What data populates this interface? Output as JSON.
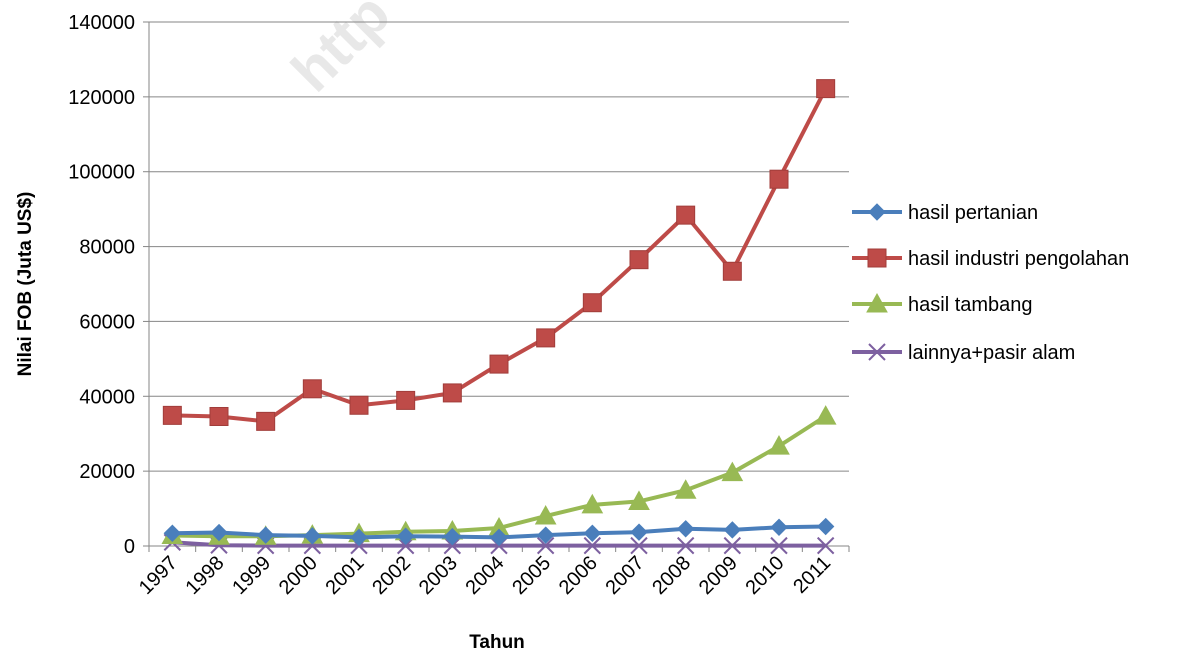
{
  "chart_data": {
    "type": "line",
    "title": "",
    "xlabel": "Tahun",
    "ylabel": "Nilai FOB (Juta US$)",
    "ylim": [
      0,
      140000
    ],
    "yticks": [
      "0",
      "20000",
      "40000",
      "60000",
      "80000",
      "100000",
      "120000",
      "140000"
    ],
    "grid": true,
    "legend_position": "right",
    "watermark": "http",
    "categories": [
      "1997",
      "1998",
      "1999",
      "2000",
      "2001",
      "2002",
      "2003",
      "2004",
      "2005",
      "2006",
      "2007",
      "2008",
      "2009",
      "2010",
      "2011"
    ],
    "series": [
      {
        "name": "hasil pertanian",
        "color": "#4a7ebb",
        "marker": "diamond",
        "values": [
          3400,
          3600,
          2900,
          2700,
          2300,
          2600,
          2500,
          2300,
          2900,
          3400,
          3700,
          4600,
          4300,
          5000,
          5200
        ]
      },
      {
        "name": "hasil industri pengolahan",
        "color": "#be4b48",
        "marker": "square",
        "values": [
          34900,
          34600,
          33300,
          42000,
          37600,
          38900,
          40900,
          48600,
          55600,
          65000,
          76500,
          88400,
          73400,
          98000,
          122200
        ]
      },
      {
        "name": "hasil tambang",
        "color": "#98b954",
        "marker": "triangle",
        "values": [
          2800,
          2600,
          2600,
          2900,
          3300,
          3800,
          4000,
          4800,
          8000,
          11000,
          11900,
          14900,
          19600,
          26700,
          34700
        ]
      },
      {
        "name": "lainnya+pasir alam",
        "color": "#7d60a0",
        "marker": "x",
        "values": [
          1000,
          200,
          100,
          100,
          100,
          100,
          100,
          100,
          100,
          100,
          100,
          100,
          100,
          100,
          100
        ]
      }
    ]
  }
}
